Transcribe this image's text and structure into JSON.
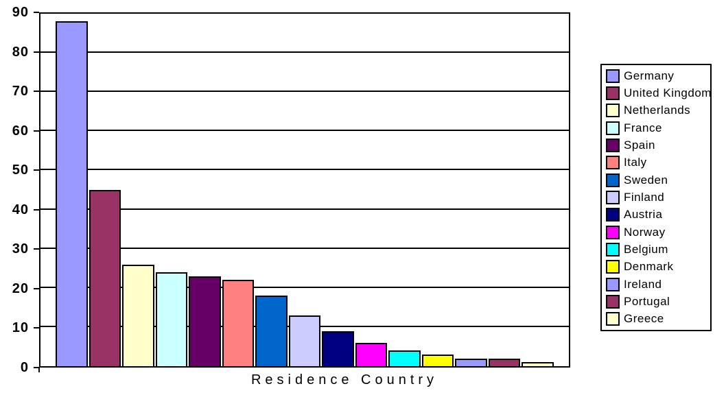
{
  "chart_data": {
    "type": "bar",
    "title": "",
    "xlabel": "Residence Country",
    "ylabel": "",
    "ylim": [
      0,
      90
    ],
    "y_ticks": [
      0,
      10,
      20,
      30,
      40,
      50,
      60,
      70,
      80,
      90
    ],
    "grid": "horizontal",
    "legend_position": "right",
    "categories": [
      "Germany",
      "United Kingdom",
      "Netherlands",
      "France",
      "Spain",
      "Italy",
      "Sweden",
      "Finland",
      "Austria",
      "Norway",
      "Belgium",
      "Denmark",
      "Ireland",
      "Portugal",
      "Greece"
    ],
    "values": [
      88,
      45,
      26,
      24,
      23,
      22,
      18,
      13,
      9,
      6,
      4,
      3,
      2,
      2,
      1
    ],
    "colors": [
      "#9999FF",
      "#993366",
      "#FFFFCC",
      "#CCFFFF",
      "#660066",
      "#FF8080",
      "#0066CC",
      "#CCCCFF",
      "#000080",
      "#FF00FF",
      "#00FFFF",
      "#FFFF00",
      "#9999FF",
      "#993366",
      "#FFFFCC"
    ],
    "axis_color": "#000000",
    "gridline_color": "#000000",
    "background": "#FFFFFF"
  }
}
